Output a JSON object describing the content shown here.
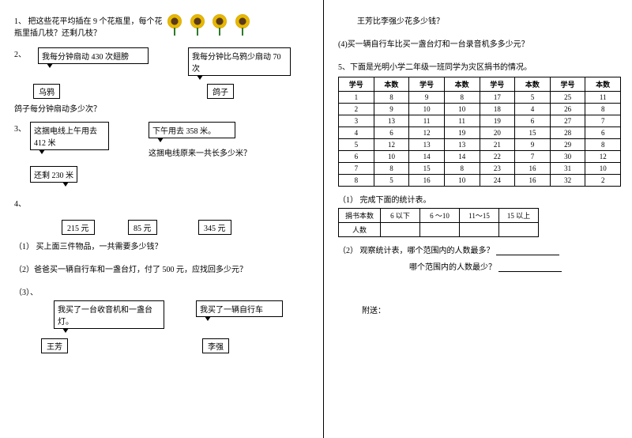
{
  "left": {
    "q1": {
      "text": "1、  把这些花平均插在 9 个花瓶里，每个花瓶里插几枝？还剩几枝？"
    },
    "q2": {
      "label": "2、",
      "crow_speech": "我每分钟扇动 430 次翅膀",
      "pigeon_speech": "我每分钟比乌鸦少扇动 70 次",
      "crow_box": "乌鸦",
      "pigeon_box": "鸽子",
      "question": "鸽子每分钟扇动多少次？"
    },
    "q3": {
      "label": "3、",
      "morning": "这捆电线上午用去 412 米",
      "afternoon": "下午用去 358 米。",
      "remain": "还剩 230 米",
      "question": "这捆电线原来一共长多少米？"
    },
    "q4": {
      "label": "4、",
      "p1": "215 元",
      "p2": "85 元",
      "p3": "345 元",
      "sub1": "（1）  买上面三件物品，一共需要多少钱？",
      "sub2": "（2）爸爸买一辆自行车和一盏台灯，付了 500 元，应找回多少元？",
      "sub3": "（3）、",
      "wf_speech": "我买了一台收音机和一盏台灯。",
      "lq_speech": "我买了一辆自行车",
      "wf_box": "王芳",
      "lq_box": "李强"
    }
  },
  "right": {
    "q_top": "王芳比李强少花多少钱？",
    "q4_4": "(4)买一辆自行车比买一盏台灯和一台录音机多多少元？",
    "q5": "5、下面是光明小学二年级一班同学为灾区捐书的情况。",
    "table": {
      "headers": [
        "学号",
        "本数",
        "学号",
        "本数",
        "学号",
        "本数",
        "学号",
        "本数"
      ],
      "rows": [
        [
          "1",
          "8",
          "9",
          "8",
          "17",
          "5",
          "25",
          "11"
        ],
        [
          "2",
          "9",
          "10",
          "10",
          "18",
          "4",
          "26",
          "8"
        ],
        [
          "3",
          "13",
          "11",
          "11",
          "19",
          "6",
          "27",
          "7"
        ],
        [
          "4",
          "6",
          "12",
          "19",
          "20",
          "15",
          "28",
          "6"
        ],
        [
          "5",
          "12",
          "13",
          "13",
          "21",
          "9",
          "29",
          "8"
        ],
        [
          "6",
          "10",
          "14",
          "14",
          "22",
          "7",
          "30",
          "12"
        ],
        [
          "7",
          "8",
          "15",
          "8",
          "23",
          "16",
          "31",
          "10"
        ],
        [
          "8",
          "5",
          "16",
          "10",
          "24",
          "16",
          "32",
          "2"
        ]
      ]
    },
    "sub1_label": "（1） 完成下面的统计表。",
    "stats": {
      "row1": [
        "捐书本数",
        "6 以下",
        "6 ～10",
        "11～15",
        "15 以上"
      ],
      "row2": [
        "人数",
        "",
        "",
        "",
        ""
      ]
    },
    "sub2_a": "（2） 观察统计表，哪个范围内的人数最多？",
    "sub2_b": "哪个范围内的人数最少？",
    "footer": "附送："
  }
}
